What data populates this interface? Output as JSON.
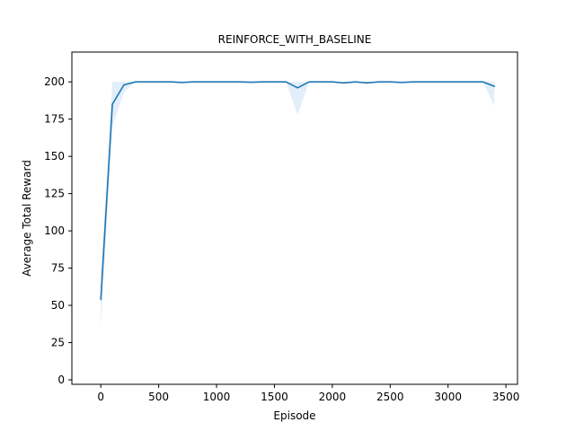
{
  "chart_data": {
    "type": "line",
    "title": "REINFORCE_WITH_BASELINE",
    "xlabel": "Episode",
    "ylabel": "Average Total Reward",
    "xlim": [
      -250,
      3600
    ],
    "ylim": [
      -3,
      220
    ],
    "xticks": [
      0,
      500,
      1000,
      1500,
      2000,
      2500,
      3000,
      3500
    ],
    "yticks": [
      0,
      25,
      50,
      75,
      100,
      125,
      150,
      175,
      200
    ],
    "grid": false,
    "legend": "none",
    "colors": {
      "line": "#1f77b4",
      "band": "#cfe3f6"
    },
    "series": [
      {
        "x": [
          0,
          100,
          200,
          300,
          400,
          500,
          600,
          700,
          800,
          900,
          1000,
          1100,
          1200,
          1300,
          1400,
          1500,
          1600,
          1700,
          1800,
          1900,
          2000,
          2100,
          2200,
          2300,
          2400,
          2500,
          2600,
          2700,
          2800,
          2900,
          3000,
          3100,
          3200,
          3300,
          3400
        ],
        "values": [
          54,
          185,
          198,
          200,
          200,
          200,
          200,
          199.6,
          200,
          200,
          200,
          200,
          200,
          199.8,
          200,
          200,
          200,
          196,
          200,
          200,
          200,
          199.3,
          200,
          199.3,
          200,
          200,
          199.6,
          200,
          200,
          200,
          200,
          200,
          200,
          200,
          197
        ],
        "lower": [
          35,
          170,
          193,
          200,
          200,
          200,
          200,
          199.3,
          200,
          200,
          200,
          200,
          200,
          199.6,
          200,
          200,
          200,
          178,
          200,
          200,
          200,
          198.6,
          200,
          198.6,
          200,
          200,
          199.3,
          200,
          200,
          200,
          200,
          200,
          200,
          200,
          184
        ],
        "upper": [
          70,
          200,
          200,
          200,
          200,
          200,
          200,
          200,
          200,
          200,
          200,
          200,
          200,
          200,
          200,
          200,
          200,
          200,
          200,
          200,
          200,
          200,
          200,
          200,
          200,
          200,
          200,
          200,
          200,
          200,
          200,
          200,
          200,
          200,
          200
        ]
      }
    ]
  }
}
